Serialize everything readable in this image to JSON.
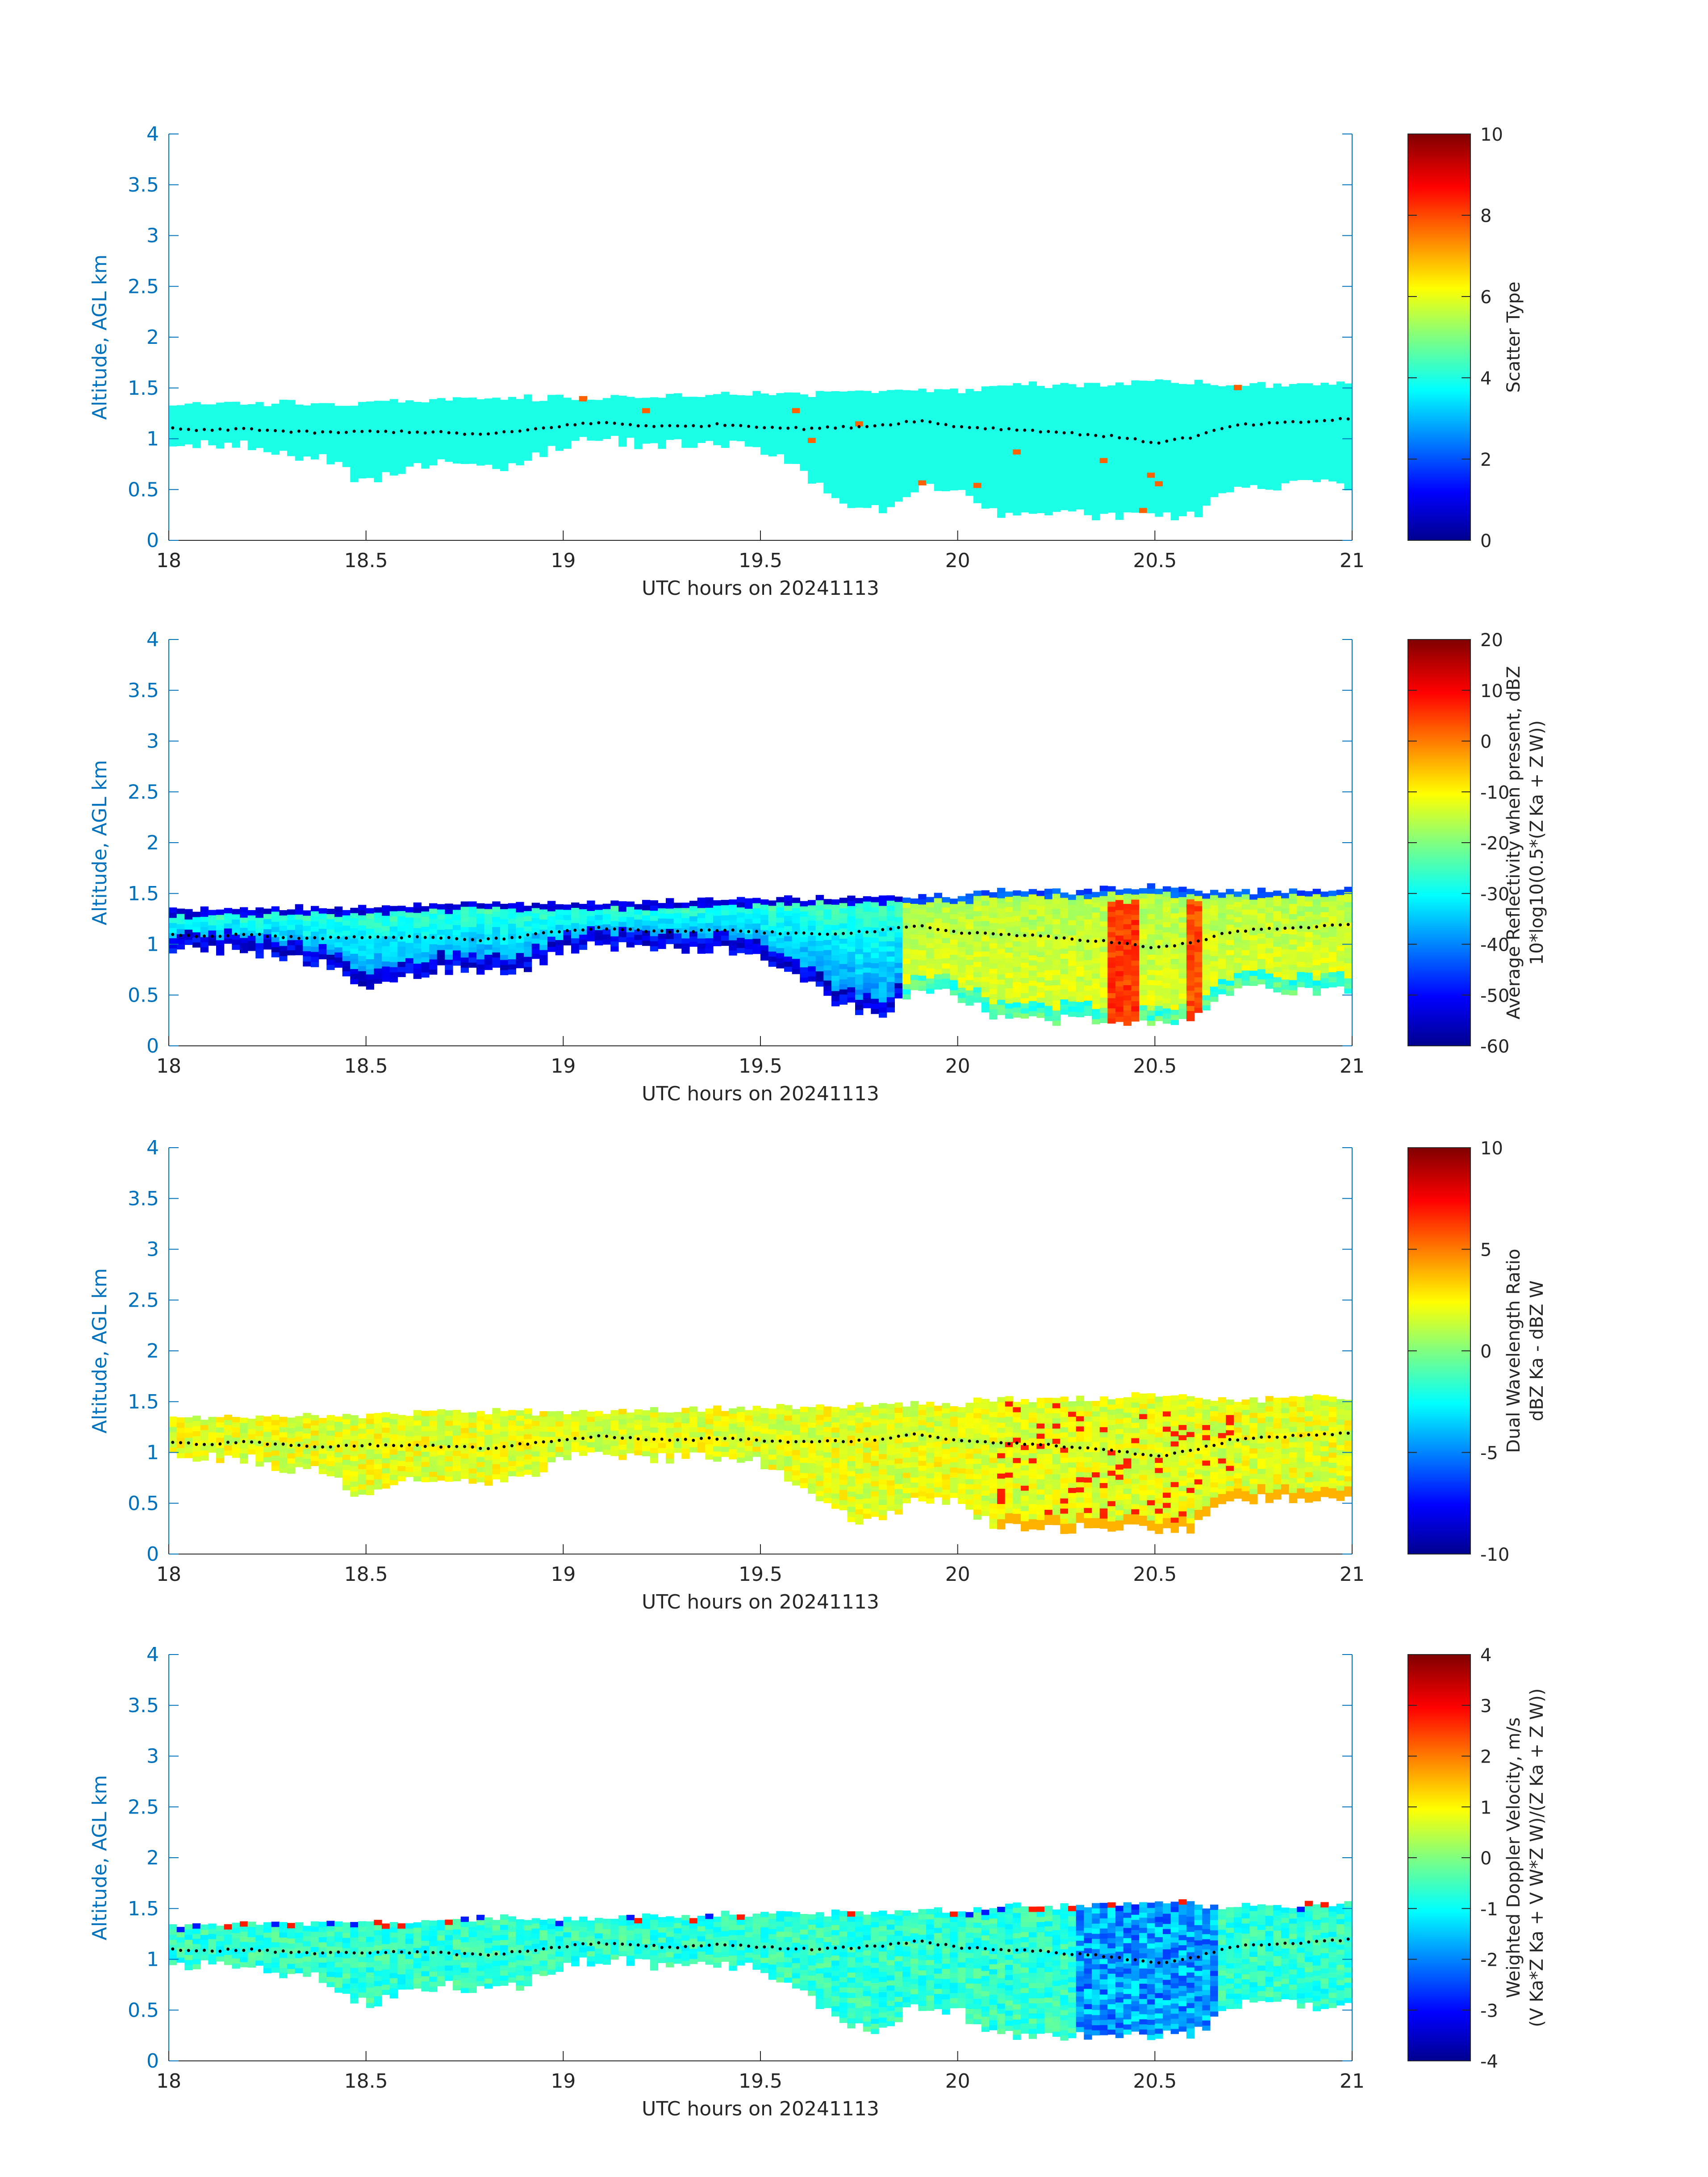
{
  "chart_data": [
    {
      "type": "heatmap",
      "panel": "scatter-type",
      "xlabel": "UTC hours on 20241113",
      "ylabel": "Altitude, AGL km",
      "xlim": [
        18,
        21
      ],
      "ylim": [
        0,
        4
      ],
      "xticks": [
        "18",
        "18.5",
        "19",
        "19.5",
        "20",
        "20.5",
        "21"
      ],
      "yticks": [
        "0",
        "0.5",
        "1",
        "1.5",
        "2",
        "2.5",
        "3",
        "3.5",
        "4"
      ],
      "colorbar": {
        "label_lines": [
          "Scatter Type"
        ],
        "range": [
          0,
          10
        ],
        "ticks": [
          "0",
          "2",
          "4",
          "6",
          "8",
          "10"
        ]
      }
    },
    {
      "type": "heatmap",
      "panel": "reflectivity",
      "xlabel": "UTC hours on 20241113",
      "ylabel": "Altitude, AGL km",
      "xlim": [
        18,
        21
      ],
      "ylim": [
        0,
        4
      ],
      "xticks": [
        "18",
        "18.5",
        "19",
        "19.5",
        "20",
        "20.5",
        "21"
      ],
      "yticks": [
        "0",
        "0.5",
        "1",
        "1.5",
        "2",
        "2.5",
        "3",
        "3.5",
        "4"
      ],
      "colorbar": {
        "label_lines": [
          "Average Reflectivity when present, dBZ",
          "10*log10(0.5*(Z Ka + Z W))"
        ],
        "range": [
          -60,
          20
        ],
        "ticks": [
          "-60",
          "-50",
          "-40",
          "-30",
          "-20",
          "-10",
          "0",
          "10",
          "20"
        ]
      }
    },
    {
      "type": "heatmap",
      "panel": "dual-wavelength-ratio",
      "xlabel": "UTC hours on 20241113",
      "ylabel": "Altitude, AGL km",
      "xlim": [
        18,
        21
      ],
      "ylim": [
        0,
        4
      ],
      "xticks": [
        "18",
        "18.5",
        "19",
        "19.5",
        "20",
        "20.5",
        "21"
      ],
      "yticks": [
        "0",
        "0.5",
        "1",
        "1.5",
        "2",
        "2.5",
        "3",
        "3.5",
        "4"
      ],
      "colorbar": {
        "label_lines": [
          "Dual Wavelength Ratio",
          "dBZ Ka - dBZ W"
        ],
        "range": [
          -10,
          10
        ],
        "ticks": [
          "-10",
          "-5",
          "0",
          "5",
          "10"
        ]
      }
    },
    {
      "type": "heatmap",
      "panel": "doppler-velocity",
      "xlabel": "UTC hours on 20241113",
      "ylabel": "Altitude, AGL km",
      "xlim": [
        18,
        21
      ],
      "ylim": [
        0,
        4
      ],
      "xticks": [
        "18",
        "18.5",
        "19",
        "19.5",
        "20",
        "20.5",
        "21"
      ],
      "yticks": [
        "0",
        "0.5",
        "1",
        "1.5",
        "2",
        "2.5",
        "3",
        "3.5",
        "4"
      ],
      "colorbar": {
        "label_lines": [
          "Weighted Doppler Velocity, m/s",
          "(V Ka*Z Ka + V W*Z W)/(Z Ka + Z W))"
        ],
        "range": [
          -4,
          4
        ],
        "ticks": [
          "-4",
          "-3",
          "-2",
          "-1",
          "0",
          "1",
          "2",
          "3",
          "4"
        ]
      }
    }
  ],
  "cloud": {
    "time_hours": [
      18.0,
      18.1,
      18.2,
      18.3,
      18.4,
      18.5,
      18.6,
      18.7,
      18.8,
      18.9,
      19.0,
      19.1,
      19.2,
      19.3,
      19.4,
      19.5,
      19.6,
      19.7,
      19.8,
      19.9,
      20.0,
      20.1,
      20.2,
      20.3,
      20.4,
      20.5,
      20.6,
      20.7,
      20.8,
      20.9,
      21.0
    ],
    "top_km": [
      1.32,
      1.32,
      1.33,
      1.33,
      1.33,
      1.33,
      1.35,
      1.37,
      1.38,
      1.38,
      1.38,
      1.38,
      1.4,
      1.4,
      1.42,
      1.42,
      1.42,
      1.44,
      1.45,
      1.45,
      1.45,
      1.5,
      1.5,
      1.5,
      1.52,
      1.55,
      1.52,
      1.5,
      1.5,
      1.52,
      1.52
    ],
    "base_km": [
      0.95,
      0.95,
      0.95,
      0.85,
      0.8,
      0.55,
      0.7,
      0.75,
      0.7,
      0.75,
      0.95,
      1.0,
      0.95,
      0.95,
      0.95,
      0.9,
      0.7,
      0.4,
      0.3,
      0.55,
      0.5,
      0.25,
      0.25,
      0.25,
      0.25,
      0.25,
      0.25,
      0.55,
      0.55,
      0.55,
      0.55
    ],
    "cloud_base_dots_km": [
      1.1,
      1.08,
      1.1,
      1.07,
      1.06,
      1.07,
      1.07,
      1.06,
      1.04,
      1.08,
      1.13,
      1.16,
      1.13,
      1.12,
      1.14,
      1.12,
      1.1,
      1.11,
      1.13,
      1.18,
      1.12,
      1.1,
      1.08,
      1.05,
      1.02,
      0.96,
      1.02,
      1.13,
      1.15,
      1.17,
      1.2
    ]
  }
}
